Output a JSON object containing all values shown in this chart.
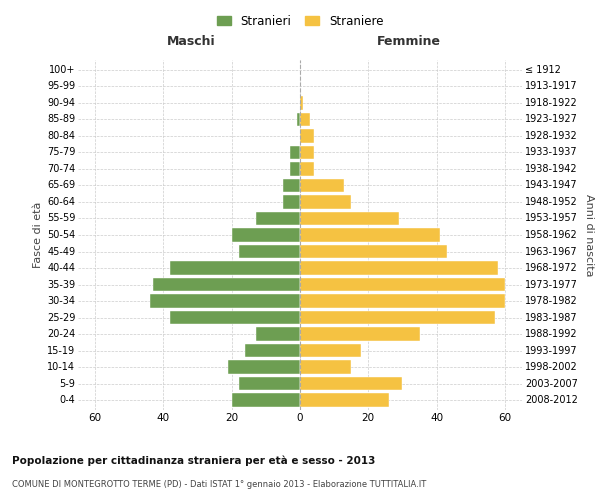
{
  "age_groups": [
    "0-4",
    "5-9",
    "10-14",
    "15-19",
    "20-24",
    "25-29",
    "30-34",
    "35-39",
    "40-44",
    "45-49",
    "50-54",
    "55-59",
    "60-64",
    "65-69",
    "70-74",
    "75-79",
    "80-84",
    "85-89",
    "90-94",
    "95-99",
    "100+"
  ],
  "birth_years": [
    "2008-2012",
    "2003-2007",
    "1998-2002",
    "1993-1997",
    "1988-1992",
    "1983-1987",
    "1978-1982",
    "1973-1977",
    "1968-1972",
    "1963-1967",
    "1958-1962",
    "1953-1957",
    "1948-1952",
    "1943-1947",
    "1938-1942",
    "1933-1937",
    "1928-1932",
    "1923-1927",
    "1918-1922",
    "1913-1917",
    "≤ 1912"
  ],
  "maschi": [
    20,
    18,
    21,
    16,
    13,
    38,
    44,
    43,
    38,
    18,
    20,
    13,
    5,
    5,
    3,
    3,
    0,
    1,
    0,
    0,
    0
  ],
  "femmine": [
    26,
    30,
    15,
    18,
    35,
    57,
    60,
    60,
    58,
    43,
    41,
    29,
    15,
    13,
    4,
    4,
    4,
    3,
    1,
    0,
    0
  ],
  "male_color": "#6d9e52",
  "female_color": "#f5c242",
  "background_color": "#ffffff",
  "grid_color": "#cccccc",
  "title1": "Popolazione per cittadinanza straniera per età e sesso - 2013",
  "title2": "COMUNE DI MONTEGROTTO TERME (PD) - Dati ISTAT 1° gennaio 2013 - Elaborazione TUTTITALIA.IT",
  "xlabel_left": "Maschi",
  "xlabel_right": "Femmine",
  "ylabel_left": "Fasce di età",
  "ylabel_right": "Anni di nascita",
  "legend_male": "Stranieri",
  "legend_female": "Straniere",
  "xlim": 65
}
